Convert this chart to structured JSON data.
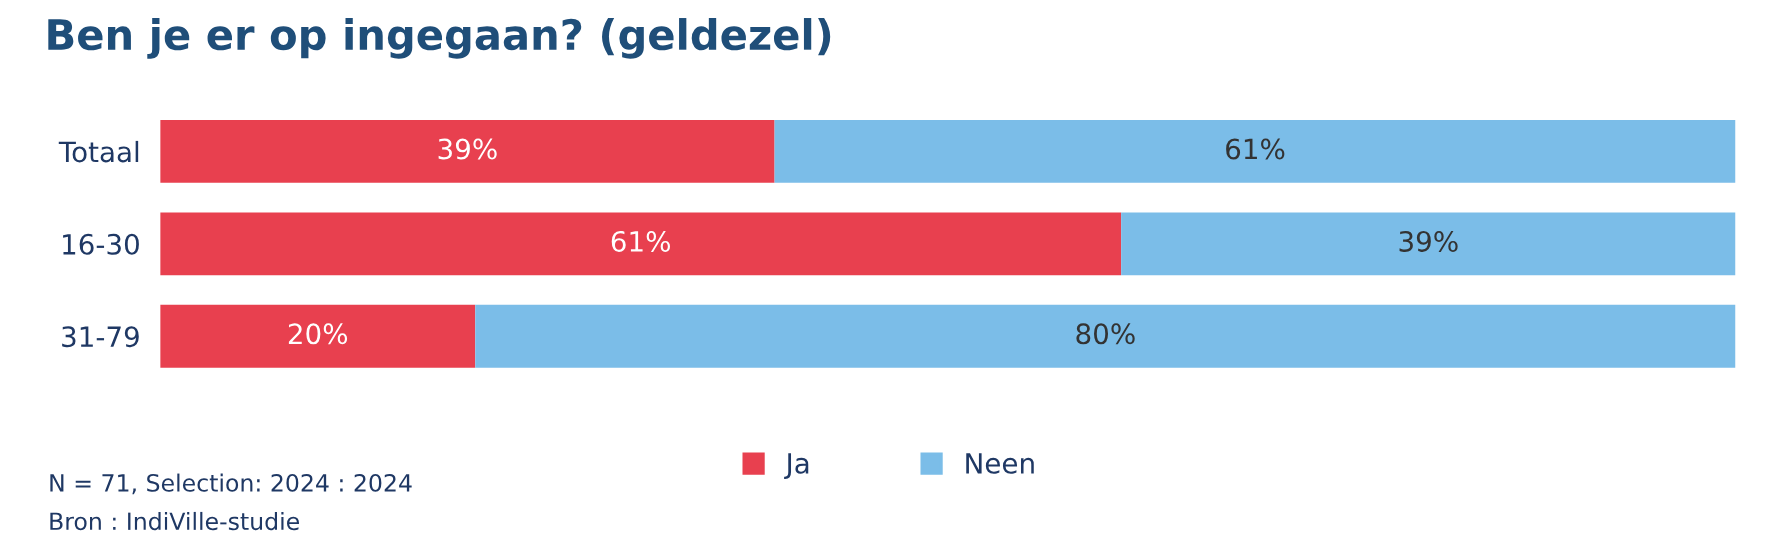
{
  "chart_data": {
    "type": "bar",
    "orientation": "horizontal",
    "stacked": true,
    "title": "Ben je er op ingegaan? (geldezel)",
    "categories": [
      "Totaal",
      "16-30",
      "31-79"
    ],
    "series": [
      {
        "name": "Ja",
        "color": "#e8404f",
        "values": [
          39,
          61,
          20
        ],
        "value_labels": [
          "39%",
          "61%",
          "20%"
        ]
      },
      {
        "name": "Neen",
        "color": "#7bbde8",
        "values": [
          61,
          39,
          80
        ],
        "value_labels": [
          "61%",
          "39%",
          "80%"
        ]
      }
    ],
    "legend": "bottom",
    "grid": false,
    "tick_labels": "y",
    "annotations": [
      "N = 71, Selection: 2024 : 2024",
      "Bron : IndiVille-studie"
    ]
  }
}
